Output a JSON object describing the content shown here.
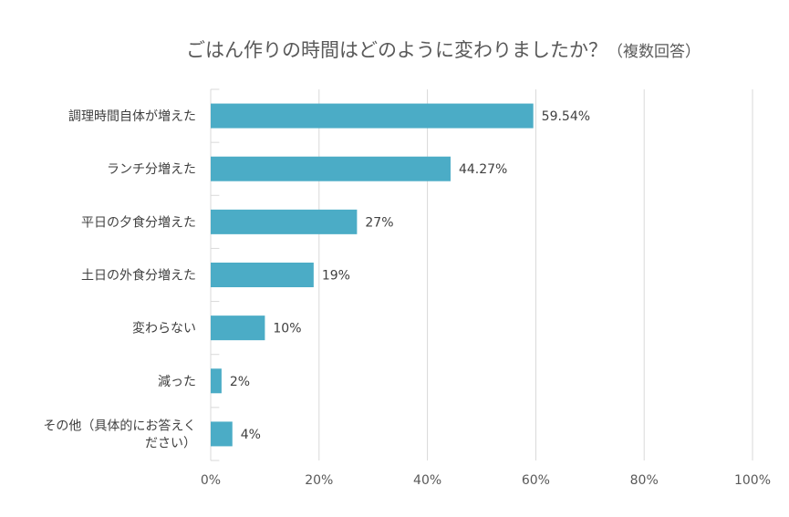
{
  "chart_data": {
    "type": "bar",
    "orientation": "horizontal",
    "title": "ごはん作りの時間はどのように変わりましたか？",
    "subtitle": "（複数回答）",
    "categories": [
      [
        "調理時間自体が増えた"
      ],
      [
        "ランチ分増えた"
      ],
      [
        "平日の夕食分増えた"
      ],
      [
        "土日の外食分増えた"
      ],
      [
        "変わらない"
      ],
      [
        "減った"
      ],
      [
        "その他（具体的にお答えく",
        "ださい）"
      ]
    ],
    "values": [
      59.54,
      44.27,
      27,
      19,
      10,
      2,
      4
    ],
    "data_labels": [
      "59.54%",
      "44.27%",
      "27%",
      "19%",
      "10%",
      "2%",
      "4%"
    ],
    "xlim": [
      0,
      100
    ],
    "x_ticks": [
      0,
      20,
      40,
      60,
      80,
      100
    ],
    "x_tick_labels": [
      "0%",
      "20%",
      "40%",
      "60%",
      "80%",
      "100%"
    ],
    "grid": true,
    "bar_color": "#4BACC6",
    "xlabel": "",
    "ylabel": ""
  }
}
